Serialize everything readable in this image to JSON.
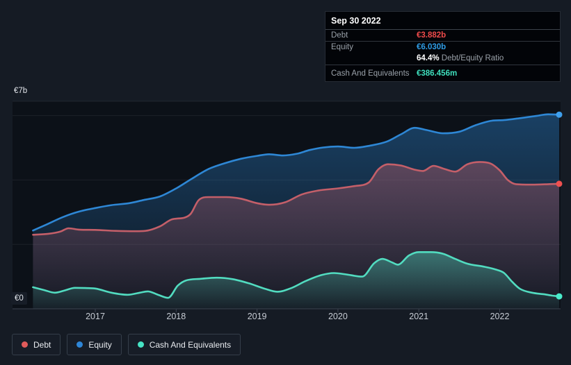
{
  "axis": {
    "y_top_label": "€7b",
    "y_zero_label": "€0",
    "x_labels": [
      "2017",
      "2018",
      "2019",
      "2020",
      "2021",
      "2022"
    ]
  },
  "tooltip": {
    "date": "Sep 30 2022",
    "rows": [
      {
        "label": "Debt",
        "value": "€3.882b",
        "value_color": "#f04b4b",
        "suffix": "",
        "sep": false
      },
      {
        "label": "Equity",
        "value": "€6.030b",
        "value_color": "#2f9ce4",
        "suffix": "",
        "sep": true
      },
      {
        "label": "",
        "value": "64.4%",
        "value_color": "#ffffff",
        "suffix": " Debt/Equity Ratio",
        "sep": false
      },
      {
        "label": "Cash And Equivalents",
        "value": "€386.456m",
        "value_color": "#3fdfbd",
        "suffix": "",
        "sep": true
      }
    ]
  },
  "legend": [
    {
      "label": "Debt",
      "color": "#e05b5b"
    },
    {
      "label": "Equity",
      "color": "#2e86d8"
    },
    {
      "label": "Cash And Equivalents",
      "color": "#46e3c4"
    }
  ],
  "chart_data": {
    "type": "area",
    "title": "Debt to Equity History",
    "unit": "EUR billions",
    "x_range": [
      2016.22,
      2022.75
    ],
    "y_range": [
      0,
      7
    ],
    "x_ticks": [
      2017,
      2018,
      2019,
      2020,
      2021,
      2022
    ],
    "grid_values": [
      0,
      2,
      4,
      6
    ],
    "legend_position": "bottom-left",
    "series": [
      {
        "name": "Equity",
        "line": "#2e87d5",
        "dot": "#3f9fec",
        "fill": "46,135,213",
        "points": [
          [
            2016.23,
            2.43
          ],
          [
            2016.4,
            2.62
          ],
          [
            2016.6,
            2.85
          ],
          [
            2016.8,
            3.02
          ],
          [
            2017.0,
            3.13
          ],
          [
            2017.2,
            3.22
          ],
          [
            2017.42,
            3.28
          ],
          [
            2017.6,
            3.38
          ],
          [
            2017.8,
            3.49
          ],
          [
            2018.0,
            3.74
          ],
          [
            2018.2,
            4.05
          ],
          [
            2018.4,
            4.34
          ],
          [
            2018.6,
            4.52
          ],
          [
            2018.8,
            4.66
          ],
          [
            2019.0,
            4.75
          ],
          [
            2019.15,
            4.8
          ],
          [
            2019.32,
            4.76
          ],
          [
            2019.5,
            4.82
          ],
          [
            2019.65,
            4.93
          ],
          [
            2019.82,
            5.01
          ],
          [
            2020.0,
            5.04
          ],
          [
            2020.2,
            5.0
          ],
          [
            2020.4,
            5.07
          ],
          [
            2020.6,
            5.19
          ],
          [
            2020.78,
            5.42
          ],
          [
            2020.95,
            5.62
          ],
          [
            2021.1,
            5.55
          ],
          [
            2021.3,
            5.45
          ],
          [
            2021.5,
            5.5
          ],
          [
            2021.7,
            5.7
          ],
          [
            2021.9,
            5.84
          ],
          [
            2022.05,
            5.86
          ],
          [
            2022.25,
            5.92
          ],
          [
            2022.45,
            5.99
          ],
          [
            2022.6,
            6.04
          ],
          [
            2022.735,
            6.03
          ]
        ]
      },
      {
        "name": "Debt",
        "line": "#c45f69",
        "dot": "#ee5050",
        "fill": "197,94,105",
        "points": [
          [
            2016.23,
            2.3
          ],
          [
            2016.42,
            2.33
          ],
          [
            2016.57,
            2.4
          ],
          [
            2016.67,
            2.5
          ],
          [
            2016.8,
            2.46
          ],
          [
            2017.0,
            2.45
          ],
          [
            2017.25,
            2.42
          ],
          [
            2017.5,
            2.41
          ],
          [
            2017.62,
            2.42
          ],
          [
            2017.8,
            2.56
          ],
          [
            2017.95,
            2.78
          ],
          [
            2018.1,
            2.83
          ],
          [
            2018.18,
            2.95
          ],
          [
            2018.28,
            3.38
          ],
          [
            2018.4,
            3.47
          ],
          [
            2018.62,
            3.47
          ],
          [
            2018.8,
            3.42
          ],
          [
            2019.0,
            3.28
          ],
          [
            2019.15,
            3.23
          ],
          [
            2019.35,
            3.31
          ],
          [
            2019.55,
            3.55
          ],
          [
            2019.75,
            3.67
          ],
          [
            2020.0,
            3.74
          ],
          [
            2020.2,
            3.81
          ],
          [
            2020.38,
            3.92
          ],
          [
            2020.5,
            4.33
          ],
          [
            2020.62,
            4.49
          ],
          [
            2020.78,
            4.45
          ],
          [
            2020.95,
            4.32
          ],
          [
            2021.05,
            4.28
          ],
          [
            2021.18,
            4.44
          ],
          [
            2021.32,
            4.34
          ],
          [
            2021.45,
            4.26
          ],
          [
            2021.6,
            4.49
          ],
          [
            2021.75,
            4.56
          ],
          [
            2021.88,
            4.52
          ],
          [
            2022.0,
            4.3
          ],
          [
            2022.1,
            4.0
          ],
          [
            2022.2,
            3.87
          ],
          [
            2022.4,
            3.855
          ],
          [
            2022.6,
            3.87
          ],
          [
            2022.735,
            3.882
          ]
        ]
      },
      {
        "name": "Cash And Equivalents",
        "line": "#52dcc0",
        "dot": "#4aeccb",
        "fill": "72,222,192",
        "points": [
          [
            2016.23,
            0.67
          ],
          [
            2016.37,
            0.58
          ],
          [
            2016.5,
            0.5
          ],
          [
            2016.62,
            0.57
          ],
          [
            2016.75,
            0.65
          ],
          [
            2016.88,
            0.645
          ],
          [
            2017.0,
            0.63
          ],
          [
            2017.2,
            0.5
          ],
          [
            2017.4,
            0.435
          ],
          [
            2017.55,
            0.5
          ],
          [
            2017.65,
            0.54
          ],
          [
            2017.78,
            0.43
          ],
          [
            2017.9,
            0.34
          ],
          [
            2018.02,
            0.72
          ],
          [
            2018.12,
            0.88
          ],
          [
            2018.3,
            0.93
          ],
          [
            2018.5,
            0.965
          ],
          [
            2018.7,
            0.92
          ],
          [
            2018.9,
            0.79
          ],
          [
            2019.1,
            0.62
          ],
          [
            2019.25,
            0.53
          ],
          [
            2019.42,
            0.64
          ],
          [
            2019.6,
            0.86
          ],
          [
            2019.8,
            1.05
          ],
          [
            2019.95,
            1.11
          ],
          [
            2020.12,
            1.06
          ],
          [
            2020.3,
            1.0
          ],
          [
            2020.45,
            1.42
          ],
          [
            2020.55,
            1.55
          ],
          [
            2020.67,
            1.44
          ],
          [
            2020.74,
            1.37
          ],
          [
            2020.88,
            1.66
          ],
          [
            2021.0,
            1.76
          ],
          [
            2021.15,
            1.76
          ],
          [
            2021.3,
            1.71
          ],
          [
            2021.45,
            1.55
          ],
          [
            2021.6,
            1.4
          ],
          [
            2021.8,
            1.31
          ],
          [
            2021.95,
            1.22
          ],
          [
            2022.05,
            1.12
          ],
          [
            2022.15,
            0.85
          ],
          [
            2022.25,
            0.62
          ],
          [
            2022.4,
            0.5
          ],
          [
            2022.55,
            0.45
          ],
          [
            2022.65,
            0.41
          ],
          [
            2022.735,
            0.386
          ]
        ]
      }
    ]
  }
}
